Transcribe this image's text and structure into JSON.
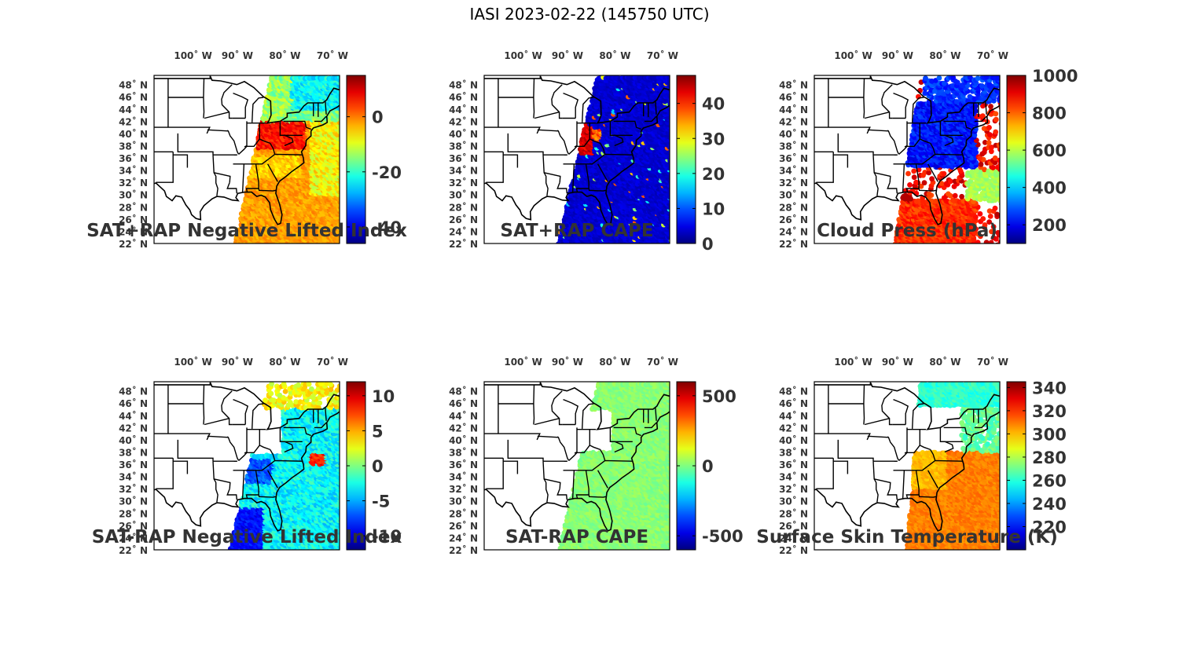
{
  "figure": {
    "title": "IASI 2023-02-22 (145750 UTC)"
  },
  "lon_labels": [
    "100˚ W",
    "90˚ W",
    "80˚ W",
    "70˚ W"
  ],
  "lat_labels": [
    "48˚ N",
    "46˚ N",
    "44˚ N",
    "42˚ N",
    "40˚ N",
    "38˚ N",
    "36˚ N",
    "34˚ N",
    "32˚ N",
    "30˚ N",
    "28˚ N",
    "26˚ N",
    "24˚ N",
    "22˚ N"
  ],
  "panels": [
    {
      "id": "sat-rap-li",
      "title": "SAT+RAP Negative Lifted Index",
      "colorbar_labels": [
        "0",
        "-20",
        "-40"
      ],
      "colorbar_range": [
        -46,
        15
      ]
    },
    {
      "id": "sat-rap-cape",
      "title": "SAT+RAP CAPE",
      "colorbar_labels": [
        "40",
        "30",
        "20",
        "10",
        "0"
      ],
      "colorbar_range": [
        0,
        48
      ]
    },
    {
      "id": "cloud-press",
      "title": "Cloud Press (hPa)",
      "colorbar_labels": [
        "1000",
        "800",
        "600",
        "400",
        "200"
      ],
      "colorbar_range": [
        100,
        1000
      ]
    },
    {
      "id": "sat-minus-rap-li",
      "title": "SAT-RAP Negative Lifted Index",
      "colorbar_labels": [
        "10",
        "5",
        "0",
        "-5",
        "-10"
      ],
      "colorbar_range": [
        -12,
        12
      ]
    },
    {
      "id": "sat-minus-rap-cape",
      "title": "SAT-RAP CAPE",
      "colorbar_labels": [
        "500",
        "0",
        "-500"
      ],
      "colorbar_range": [
        -600,
        600
      ]
    },
    {
      "id": "skin-temp",
      "title": "Surface Skin Temperature (K)",
      "colorbar_labels": [
        "340",
        "320",
        "300",
        "280",
        "260",
        "240",
        "220"
      ],
      "colorbar_range": [
        200,
        345
      ]
    }
  ],
  "colormap": "jet"
}
